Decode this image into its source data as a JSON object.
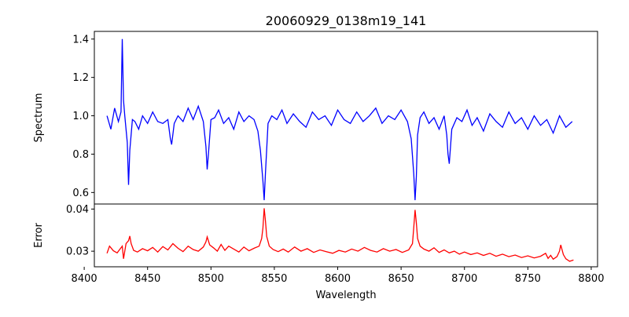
{
  "chart_data": [
    {
      "type": "line",
      "title": "20060929_0138m19_141",
      "xlabel": "",
      "ylabel": "Spectrum",
      "xlim": [
        8408,
        8805
      ],
      "ylim": [
        0.54,
        1.44
      ],
      "yticks": [
        0.6,
        0.8,
        1.0,
        1.2,
        1.4
      ],
      "ytick_labels": [
        "0.6",
        "0.8",
        "1.0",
        "1.2",
        "1.4"
      ],
      "line_color": "#0000ff",
      "series": [
        {
          "name": "Spectrum",
          "x": [
            8418,
            8421,
            8424,
            8427,
            8429,
            8430,
            8431,
            8432,
            8434,
            8435,
            8436,
            8438,
            8440,
            8443,
            8446,
            8450,
            8454,
            8458,
            8462,
            8466,
            8468,
            8469,
            8471,
            8474,
            8478,
            8482,
            8486,
            8490,
            8494,
            8496,
            8497,
            8498,
            8500,
            8503,
            8506,
            8510,
            8514,
            8518,
            8522,
            8526,
            8530,
            8534,
            8537,
            8539,
            8541,
            8542,
            8543,
            8545,
            8548,
            8552,
            8556,
            8560,
            8565,
            8570,
            8575,
            8580,
            8585,
            8590,
            8595,
            8600,
            8605,
            8610,
            8615,
            8620,
            8625,
            8630,
            8635,
            8640,
            8645,
            8650,
            8655,
            8658,
            8660,
            8661,
            8662,
            8663,
            8665,
            8668,
            8672,
            8676,
            8680,
            8684,
            8686,
            8687,
            8688,
            8690,
            8694,
            8698,
            8702,
            8706,
            8710,
            8715,
            8720,
            8725,
            8730,
            8735,
            8740,
            8745,
            8750,
            8755,
            8760,
            8765,
            8770,
            8775,
            8780,
            8785
          ],
          "values": [
            1.0,
            0.93,
            1.04,
            0.97,
            1.02,
            1.4,
            1.08,
            1.0,
            0.86,
            0.64,
            0.82,
            0.98,
            0.97,
            0.93,
            1.0,
            0.96,
            1.02,
            0.97,
            0.96,
            0.98,
            0.88,
            0.85,
            0.96,
            1.0,
            0.97,
            1.04,
            0.98,
            1.05,
            0.97,
            0.84,
            0.72,
            0.8,
            0.98,
            0.99,
            1.03,
            0.96,
            0.99,
            0.93,
            1.02,
            0.97,
            1.0,
            0.98,
            0.92,
            0.82,
            0.66,
            0.56,
            0.7,
            0.96,
            1.0,
            0.98,
            1.03,
            0.96,
            1.01,
            0.97,
            0.94,
            1.02,
            0.98,
            1.0,
            0.95,
            1.03,
            0.98,
            0.96,
            1.02,
            0.97,
            1.0,
            1.04,
            0.96,
            1.0,
            0.98,
            1.03,
            0.97,
            0.88,
            0.7,
            0.56,
            0.68,
            0.9,
            0.99,
            1.02,
            0.96,
            0.99,
            0.93,
            1.0,
            0.9,
            0.8,
            0.75,
            0.93,
            0.99,
            0.97,
            1.03,
            0.95,
            0.99,
            0.92,
            1.01,
            0.97,
            0.94,
            1.02,
            0.96,
            0.99,
            0.93,
            1.0,
            0.95,
            0.98,
            0.91,
            1.0,
            0.94,
            0.97
          ]
        }
      ]
    },
    {
      "type": "line",
      "title": "",
      "xlabel": "Wavelength",
      "ylabel": "Error",
      "xlim": [
        8408,
        8805
      ],
      "ylim": [
        0.0263,
        0.0412
      ],
      "xticks": [
        8400,
        8450,
        8500,
        8550,
        8600,
        8650,
        8700,
        8750,
        8800
      ],
      "xtick_labels": [
        "8400",
        "8450",
        "8500",
        "8550",
        "8600",
        "8650",
        "8700",
        "8750",
        "8800"
      ],
      "yticks": [
        0.03,
        0.04
      ],
      "ytick_labels": [
        "0.03",
        "0.04"
      ],
      "line_color": "#ff0000",
      "series": [
        {
          "name": "Error",
          "x": [
            8418,
            8420,
            8423,
            8426,
            8428,
            8430,
            8431,
            8433,
            8435,
            8436,
            8437,
            8439,
            8442,
            8446,
            8450,
            8454,
            8458,
            8462,
            8466,
            8470,
            8474,
            8478,
            8482,
            8486,
            8490,
            8494,
            8496,
            8497,
            8499,
            8502,
            8505,
            8508,
            8511,
            8514,
            8518,
            8522,
            8526,
            8530,
            8534,
            8538,
            8540,
            8541,
            8542,
            8543,
            8544,
            8546,
            8549,
            8553,
            8557,
            8561,
            8566,
            8571,
            8576,
            8581,
            8586,
            8591,
            8596,
            8601,
            8606,
            8611,
            8616,
            8621,
            8626,
            8631,
            8636,
            8641,
            8646,
            8651,
            8656,
            8659,
            8660,
            8661,
            8662,
            8663,
            8665,
            8668,
            8672,
            8676,
            8680,
            8684,
            8688,
            8692,
            8696,
            8700,
            8705,
            8710,
            8715,
            8720,
            8725,
            8730,
            8735,
            8740,
            8745,
            8750,
            8755,
            8760,
            8764,
            8766,
            8768,
            8770,
            8773,
            8775,
            8776,
            8778,
            8780,
            8783,
            8786
          ],
          "values": [
            0.0295,
            0.0312,
            0.0301,
            0.0296,
            0.0304,
            0.0312,
            0.0282,
            0.0318,
            0.0325,
            0.0336,
            0.0318,
            0.0302,
            0.0298,
            0.0306,
            0.0301,
            0.0309,
            0.0298,
            0.0311,
            0.0303,
            0.0318,
            0.0307,
            0.0299,
            0.0312,
            0.0304,
            0.03,
            0.031,
            0.0322,
            0.0334,
            0.0315,
            0.0308,
            0.03,
            0.0316,
            0.0302,
            0.0312,
            0.0305,
            0.0298,
            0.031,
            0.0301,
            0.0307,
            0.0312,
            0.033,
            0.0355,
            0.0402,
            0.0372,
            0.0335,
            0.0312,
            0.0304,
            0.0299,
            0.0305,
            0.0298,
            0.031,
            0.03,
            0.0306,
            0.0297,
            0.0303,
            0.0299,
            0.0295,
            0.0302,
            0.0298,
            0.0305,
            0.03,
            0.0309,
            0.0302,
            0.0298,
            0.0306,
            0.03,
            0.0304,
            0.0297,
            0.0303,
            0.0318,
            0.0355,
            0.0398,
            0.0368,
            0.033,
            0.0312,
            0.0305,
            0.03,
            0.0308,
            0.0297,
            0.0303,
            0.0296,
            0.03,
            0.0293,
            0.0298,
            0.0292,
            0.0296,
            0.029,
            0.0295,
            0.0288,
            0.0293,
            0.0287,
            0.0291,
            0.0285,
            0.0289,
            0.0284,
            0.0288,
            0.0295,
            0.0283,
            0.029,
            0.0281,
            0.0287,
            0.03,
            0.0315,
            0.0292,
            0.0282,
            0.0276,
            0.0279
          ]
        }
      ]
    }
  ]
}
